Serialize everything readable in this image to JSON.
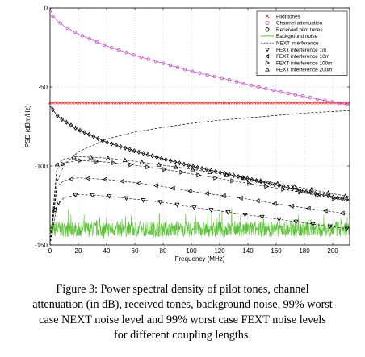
{
  "caption": "Figure 3: Power spectral density of pilot tones, channel attenuation (in dB), received tones, background noise, 99% worst case NEXT noise level and 99% worst case FEXT noise levels for different coupling lengths.",
  "caption_lines": [
    "Figure 3: Power spectral density of pilot tones, channel",
    "attenuation (in dB), received tones, background noise, 99% worst",
    "case NEXT noise level and 99% worst case FEXT noise levels",
    "for different coupling lengths."
  ],
  "colors": {
    "pilot": "#e8322e",
    "channel": "#c04fc0",
    "background_noise": "#5ec33a",
    "black": "#000000"
  },
  "chart_data": {
    "type": "line",
    "xlabel": "Frequency (MHz)",
    "ylabel": "PSD (dBm/Hz)",
    "xlim": [
      0,
      212
    ],
    "ylim": [
      -150,
      0
    ],
    "xticks": [
      0,
      20,
      40,
      60,
      80,
      100,
      120,
      140,
      160,
      180,
      200
    ],
    "yticks": [
      0,
      -50,
      -100,
      -150
    ],
    "grid": true,
    "legend_position": "top-right",
    "legend": [
      {
        "label": "Pilot tones",
        "marker": "x",
        "color": "#e8322e"
      },
      {
        "label": "Channel attenuation",
        "marker": "o",
        "color": "#c04fc0"
      },
      {
        "label": "Received pilot tones",
        "marker": "diamond",
        "color": "#000000"
      },
      {
        "label": "Background noise",
        "marker": "line",
        "color": "#5ec33a"
      },
      {
        "label": "NEXT interference",
        "marker": "dashed",
        "color": "#000000"
      },
      {
        "label": "FEXT interference 1m",
        "marker": "triangle-down",
        "color": "#000000"
      },
      {
        "label": "FEXT interference 10m",
        "marker": "triangle-left",
        "color": "#000000"
      },
      {
        "label": "FEXT interference 100m",
        "marker": "triangle-right",
        "color": "#000000"
      },
      {
        "label": "FEXT interference 200m",
        "marker": "triangle-up",
        "color": "#000000"
      }
    ],
    "series": [
      {
        "name": "Pilot tones",
        "x": [
          0,
          212
        ],
        "y": [
          -60,
          -60
        ]
      },
      {
        "name": "Channel attenuation",
        "x": [
          0,
          2,
          5,
          10,
          20,
          40,
          60,
          80,
          100,
          120,
          140,
          160,
          180,
          200,
          212
        ],
        "y": [
          0,
          -5,
          -8,
          -11.5,
          -16.5,
          -24,
          -30,
          -35,
          -40,
          -44,
          -48.5,
          -52.5,
          -56,
          -59.5,
          -61.5
        ]
      },
      {
        "name": "Received pilot tones",
        "x": [
          0,
          5,
          10,
          20,
          40,
          60,
          80,
          100,
          120,
          140,
          160,
          180,
          200,
          212
        ],
        "y": [
          -62,
          -68,
          -71.5,
          -77,
          -85,
          -90.5,
          -95.5,
          -100,
          -104,
          -108,
          -112,
          -116,
          -119.5,
          -121.5
        ]
      },
      {
        "name": "NEXT interference",
        "x": [
          0,
          5,
          10,
          20,
          40,
          60,
          80,
          100,
          120,
          140,
          160,
          180,
          200,
          212
        ],
        "y": [
          -150,
          -110,
          -99,
          -91,
          -83,
          -78.5,
          -75.5,
          -73,
          -71,
          -69.5,
          -68,
          -66.5,
          -65.5,
          -65
        ]
      },
      {
        "name": "FEXT interference 1m",
        "x": [
          0,
          5,
          10,
          20,
          40,
          60,
          80,
          100,
          120,
          140,
          160,
          180,
          200,
          212
        ],
        "y": [
          -150,
          -124,
          -120,
          -118,
          -119,
          -121,
          -123,
          -126,
          -128.5,
          -131,
          -133.5,
          -136,
          -138.5,
          -140
        ]
      },
      {
        "name": "FEXT interference 10m",
        "x": [
          0,
          5,
          10,
          20,
          40,
          60,
          80,
          100,
          120,
          140,
          160,
          180,
          200,
          212
        ],
        "y": [
          -150,
          -113,
          -109,
          -107.5,
          -108.5,
          -110.5,
          -113,
          -116,
          -118.5,
          -121,
          -124,
          -126.5,
          -129,
          -130.5
        ]
      },
      {
        "name": "FEXT interference 100m",
        "x": [
          0,
          5,
          10,
          20,
          40,
          60,
          80,
          100,
          120,
          140,
          160,
          180,
          200,
          212
        ],
        "y": [
          -150,
          -102,
          -98,
          -96.5,
          -97.5,
          -99.5,
          -102,
          -105,
          -108,
          -111,
          -114,
          -117,
          -120.5,
          -122
        ]
      },
      {
        "name": "FEXT interference 200m",
        "x": [
          0,
          5,
          10,
          20,
          40,
          60,
          80,
          100,
          120,
          140,
          160,
          180,
          200,
          212
        ],
        "y": [
          -150,
          -99,
          -95.5,
          -94,
          -95,
          -97,
          -99.5,
          -102,
          -105,
          -108,
          -111,
          -114,
          -117.5,
          -119.5
        ]
      },
      {
        "name": "Background noise",
        "x": [
          0,
          212
        ],
        "y": [
          -140,
          -140
        ]
      }
    ]
  }
}
